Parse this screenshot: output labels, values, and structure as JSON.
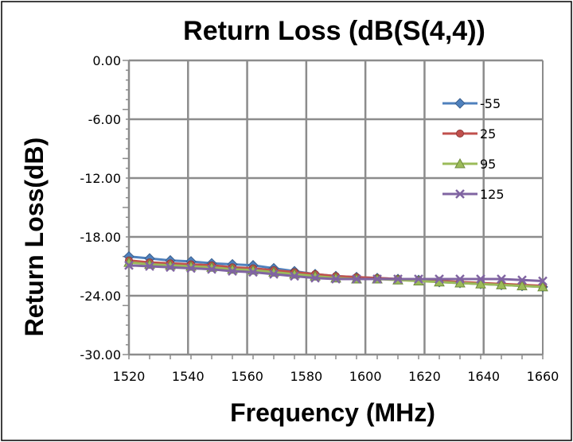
{
  "chart_data": {
    "type": "line",
    "title": "Return Loss (dB(S(4,4))",
    "xlabel": "Frequency (MHz)",
    "ylabel": "Return Loss(dB)",
    "xlim": [
      1520,
      1660
    ],
    "ylim": [
      -30,
      0
    ],
    "xticks": [
      "1520",
      "1540",
      "1560",
      "1580",
      "1600",
      "1620",
      "1640",
      "1660"
    ],
    "yticks": [
      "0.00",
      "-6.00",
      "-12.00",
      "-18.00",
      "-24.00",
      "-30.00"
    ],
    "grid": true,
    "legend": "right",
    "x": [
      1520,
      1527,
      1534,
      1541,
      1548,
      1555,
      1562,
      1569,
      1576,
      1583,
      1590,
      1597,
      1604,
      1611,
      1618,
      1625,
      1632,
      1639,
      1646,
      1653,
      1660
    ],
    "series": [
      {
        "name": "-55",
        "color": "#4f81bd",
        "marker": "diamond",
        "values": [
          -20.0,
          -20.2,
          -20.4,
          -20.5,
          -20.7,
          -20.8,
          -20.9,
          -21.2,
          -21.5,
          -21.8,
          -22.0,
          -22.1,
          -22.2,
          -22.3,
          -22.4,
          -22.6,
          -22.7,
          -22.8,
          -22.9,
          -23.0,
          -23.1
        ]
      },
      {
        "name": "25",
        "color": "#c0504d",
        "marker": "circle",
        "values": [
          -20.4,
          -20.6,
          -20.7,
          -20.8,
          -20.9,
          -21.1,
          -21.2,
          -21.4,
          -21.6,
          -21.8,
          -22.0,
          -22.1,
          -22.2,
          -22.3,
          -22.4,
          -22.5,
          -22.6,
          -22.7,
          -22.8,
          -22.9,
          -23.0
        ]
      },
      {
        "name": "95",
        "color": "#9bbb59",
        "marker": "triangle",
        "values": [
          -20.6,
          -20.8,
          -20.9,
          -21.0,
          -21.1,
          -21.3,
          -21.4,
          -21.6,
          -21.8,
          -22.0,
          -22.2,
          -22.3,
          -22.3,
          -22.4,
          -22.5,
          -22.6,
          -22.7,
          -22.8,
          -22.9,
          -23.0,
          -23.1
        ]
      },
      {
        "name": "125",
        "color": "#8064a2",
        "marker": "x",
        "values": [
          -20.9,
          -21.0,
          -21.1,
          -21.2,
          -21.3,
          -21.5,
          -21.6,
          -21.8,
          -22.0,
          -22.2,
          -22.3,
          -22.3,
          -22.3,
          -22.3,
          -22.3,
          -22.3,
          -22.3,
          -22.3,
          -22.3,
          -22.4,
          -22.5
        ]
      }
    ]
  }
}
